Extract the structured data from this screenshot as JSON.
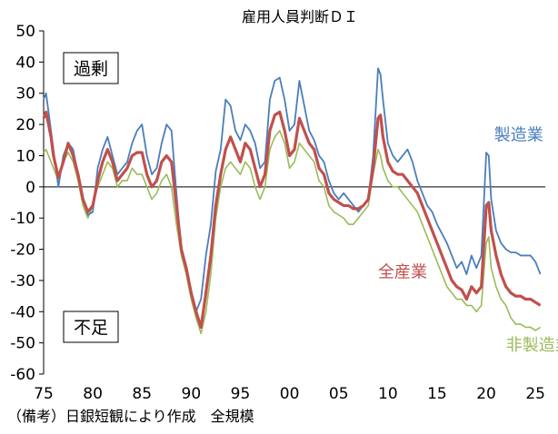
{
  "chart_data": {
    "type": "line",
    "title": "雇用人員判断ＤＩ",
    "note": "（備考）日銀短観により作成　全規模",
    "ylim": [
      -60,
      50
    ],
    "ytick_step": 10,
    "xlim": [
      1975,
      2026
    ],
    "xticks": [
      1975,
      1980,
      1985,
      1990,
      1995,
      2000,
      2005,
      2010,
      2015,
      2020,
      2025
    ],
    "xtick_labels": [
      "75",
      "80",
      "85",
      "90",
      "95",
      "00",
      "05",
      "10",
      "15",
      "20",
      "25"
    ],
    "annotations": [
      {
        "text": "過剰",
        "place": "upper-left"
      },
      {
        "text": "不足",
        "place": "lower-left"
      }
    ],
    "series": [
      {
        "name": "製造業",
        "color": "#4a7ebb",
        "x": [
          1975.0,
          1975.25,
          1975.5,
          1975.75,
          1976.0,
          1976.5,
          1977.0,
          1977.5,
          1978.0,
          1978.5,
          1979.0,
          1979.5,
          1980.0,
          1980.5,
          1981.0,
          1981.5,
          1982.0,
          1982.5,
          1983.0,
          1983.5,
          1984.0,
          1984.5,
          1985.0,
          1985.5,
          1986.0,
          1986.5,
          1987.0,
          1987.5,
          1988.0,
          1988.5,
          1989.0,
          1989.5,
          1990.0,
          1990.5,
          1991.0,
          1991.5,
          1992.0,
          1992.5,
          1993.0,
          1993.5,
          1994.0,
          1994.5,
          1995.0,
          1995.5,
          1996.0,
          1996.5,
          1997.0,
          1997.5,
          1998.0,
          1998.5,
          1999.0,
          1999.5,
          2000.0,
          2000.5,
          2001.0,
          2001.5,
          2002.0,
          2002.5,
          2003.0,
          2003.5,
          2004.0,
          2004.5,
          2005.0,
          2005.5,
          2006.0,
          2006.5,
          2007.0,
          2007.5,
          2008.0,
          2008.5,
          2009.0,
          2009.25,
          2009.5,
          2010.0,
          2010.5,
          2011.0,
          2011.5,
          2012.0,
          2012.5,
          2013.0,
          2013.5,
          2014.0,
          2014.5,
          2015.0,
          2015.5,
          2016.0,
          2016.5,
          2017.0,
          2017.5,
          2018.0,
          2018.5,
          2019.0,
          2019.5,
          2020.0,
          2020.25,
          2020.5,
          2021.0,
          2021.5,
          2022.0,
          2022.5,
          2023.0,
          2023.5,
          2024.0,
          2024.5,
          2025.0,
          2025.5
        ],
        "values": [
          28,
          30,
          24,
          18,
          12,
          0,
          10,
          14,
          12,
          4,
          -4,
          -9,
          -8,
          6,
          12,
          16,
          10,
          4,
          6,
          8,
          14,
          18,
          20,
          10,
          4,
          6,
          14,
          20,
          18,
          -2,
          -20,
          -26,
          -34,
          -40,
          -36,
          -22,
          -12,
          5,
          12,
          28,
          26,
          18,
          15,
          20,
          18,
          14,
          6,
          8,
          28,
          34,
          35,
          28,
          18,
          20,
          34,
          26,
          18,
          15,
          10,
          8,
          2,
          -2,
          -4,
          -2,
          -4,
          -6,
          -8,
          -6,
          -4,
          10,
          38,
          36,
          28,
          14,
          10,
          8,
          10,
          12,
          8,
          2,
          -2,
          -6,
          -8,
          -12,
          -15,
          -18,
          -22,
          -26,
          -24,
          -28,
          -22,
          -26,
          -22,
          11,
          10,
          -4,
          -14,
          -18,
          -20,
          -21,
          -21,
          -22,
          -22,
          -22,
          -24,
          -28
        ]
      },
      {
        "name": "全産業",
        "color": "#c0504d",
        "x": [
          1975.0,
          1975.25,
          1975.5,
          1975.75,
          1976.0,
          1976.5,
          1977.0,
          1977.5,
          1978.0,
          1978.5,
          1979.0,
          1979.5,
          1980.0,
          1980.5,
          1981.0,
          1981.5,
          1982.0,
          1982.5,
          1983.0,
          1983.5,
          1984.0,
          1984.5,
          1985.0,
          1985.5,
          1986.0,
          1986.5,
          1987.0,
          1987.5,
          1988.0,
          1988.5,
          1989.0,
          1989.5,
          1990.0,
          1990.5,
          1991.0,
          1991.5,
          1992.0,
          1992.5,
          1993.0,
          1993.5,
          1994.0,
          1994.5,
          1995.0,
          1995.5,
          1996.0,
          1996.5,
          1997.0,
          1997.5,
          1998.0,
          1998.5,
          1999.0,
          1999.5,
          2000.0,
          2000.5,
          2001.0,
          2001.5,
          2002.0,
          2002.5,
          2003.0,
          2003.5,
          2004.0,
          2004.5,
          2005.0,
          2005.5,
          2006.0,
          2006.5,
          2007.0,
          2007.5,
          2008.0,
          2008.5,
          2009.0,
          2009.25,
          2009.5,
          2010.0,
          2010.5,
          2011.0,
          2011.5,
          2012.0,
          2012.5,
          2013.0,
          2013.5,
          2014.0,
          2014.5,
          2015.0,
          2015.5,
          2016.0,
          2016.5,
          2017.0,
          2017.5,
          2018.0,
          2018.5,
          2019.0,
          2019.5,
          2020.0,
          2020.25,
          2020.5,
          2021.0,
          2021.5,
          2022.0,
          2022.5,
          2023.0,
          2023.5,
          2024.0,
          2024.5,
          2025.0,
          2025.5
        ],
        "values": [
          22,
          24,
          20,
          16,
          10,
          3,
          8,
          14,
          10,
          4,
          -4,
          -8,
          -6,
          2,
          8,
          12,
          8,
          2,
          4,
          6,
          10,
          11,
          11,
          4,
          0,
          2,
          8,
          10,
          8,
          -6,
          -20,
          -26,
          -34,
          -40,
          -45,
          -34,
          -22,
          -6,
          4,
          12,
          16,
          12,
          8,
          14,
          12,
          6,
          0,
          4,
          18,
          23,
          24,
          18,
          10,
          12,
          22,
          18,
          14,
          12,
          6,
          4,
          -2,
          -4,
          -5,
          -6,
          -6,
          -7,
          -7,
          -6,
          -4,
          6,
          22,
          23,
          16,
          8,
          5,
          4,
          4,
          2,
          0,
          -2,
          -6,
          -10,
          -14,
          -18,
          -22,
          -26,
          -30,
          -32,
          -33,
          -36,
          -32,
          -34,
          -32,
          -6,
          -5,
          -14,
          -22,
          -28,
          -32,
          -34,
          -35,
          -35,
          -36,
          -36,
          -37,
          -38
        ]
      },
      {
        "name": "非製造業",
        "color": "#9bbb59",
        "x": [
          1975.0,
          1975.25,
          1975.5,
          1975.75,
          1976.0,
          1976.5,
          1977.0,
          1977.5,
          1978.0,
          1978.5,
          1979.0,
          1979.5,
          1980.0,
          1980.5,
          1981.0,
          1981.5,
          1982.0,
          1982.5,
          1983.0,
          1983.5,
          1984.0,
          1984.5,
          1985.0,
          1985.5,
          1986.0,
          1986.5,
          1987.0,
          1987.5,
          1988.0,
          1988.5,
          1989.0,
          1989.5,
          1990.0,
          1990.5,
          1991.0,
          1991.5,
          1992.0,
          1992.5,
          1993.0,
          1993.5,
          1994.0,
          1994.5,
          1995.0,
          1995.5,
          1996.0,
          1996.5,
          1997.0,
          1997.5,
          1998.0,
          1998.5,
          1999.0,
          1999.5,
          2000.0,
          2000.5,
          2001.0,
          2001.5,
          2002.0,
          2002.5,
          2003.0,
          2003.5,
          2004.0,
          2004.5,
          2005.0,
          2005.5,
          2006.0,
          2006.5,
          2007.0,
          2007.5,
          2008.0,
          2008.5,
          2009.0,
          2009.25,
          2009.5,
          2010.0,
          2010.5,
          2011.0,
          2011.5,
          2012.0,
          2012.5,
          2013.0,
          2013.5,
          2014.0,
          2014.5,
          2015.0,
          2015.5,
          2016.0,
          2016.5,
          2017.0,
          2017.5,
          2018.0,
          2018.5,
          2019.0,
          2019.5,
          2020.0,
          2020.25,
          2020.5,
          2021.0,
          2021.5,
          2022.0,
          2022.5,
          2023.0,
          2023.5,
          2024.0,
          2024.5,
          2025.0,
          2025.5
        ],
        "values": [
          11,
          12,
          10,
          8,
          6,
          2,
          8,
          11,
          8,
          2,
          -6,
          -10,
          -6,
          0,
          4,
          8,
          6,
          0,
          2,
          2,
          6,
          4,
          4,
          0,
          -4,
          -2,
          2,
          4,
          0,
          -12,
          -22,
          -28,
          -36,
          -42,
          -47,
          -40,
          -28,
          -10,
          0,
          6,
          8,
          6,
          4,
          8,
          6,
          0,
          -4,
          0,
          12,
          16,
          18,
          14,
          6,
          8,
          14,
          12,
          10,
          8,
          2,
          0,
          -6,
          -8,
          -9,
          -10,
          -12,
          -12,
          -10,
          -8,
          -6,
          4,
          12,
          10,
          6,
          2,
          0,
          0,
          -2,
          -4,
          -6,
          -8,
          -12,
          -16,
          -20,
          -24,
          -28,
          -32,
          -34,
          -36,
          -36,
          -38,
          -38,
          -40,
          -38,
          -18,
          -16,
          -26,
          -32,
          -36,
          -38,
          -42,
          -44,
          -44,
          -45,
          -45,
          -46,
          -45
        ]
      }
    ],
    "series_labels": [
      {
        "series": 0,
        "x": 2020.8,
        "y": 15
      },
      {
        "series": 1,
        "x": 2009.0,
        "y": -29
      },
      {
        "series": 2,
        "x": 2022.0,
        "y": -52.5
      }
    ]
  }
}
